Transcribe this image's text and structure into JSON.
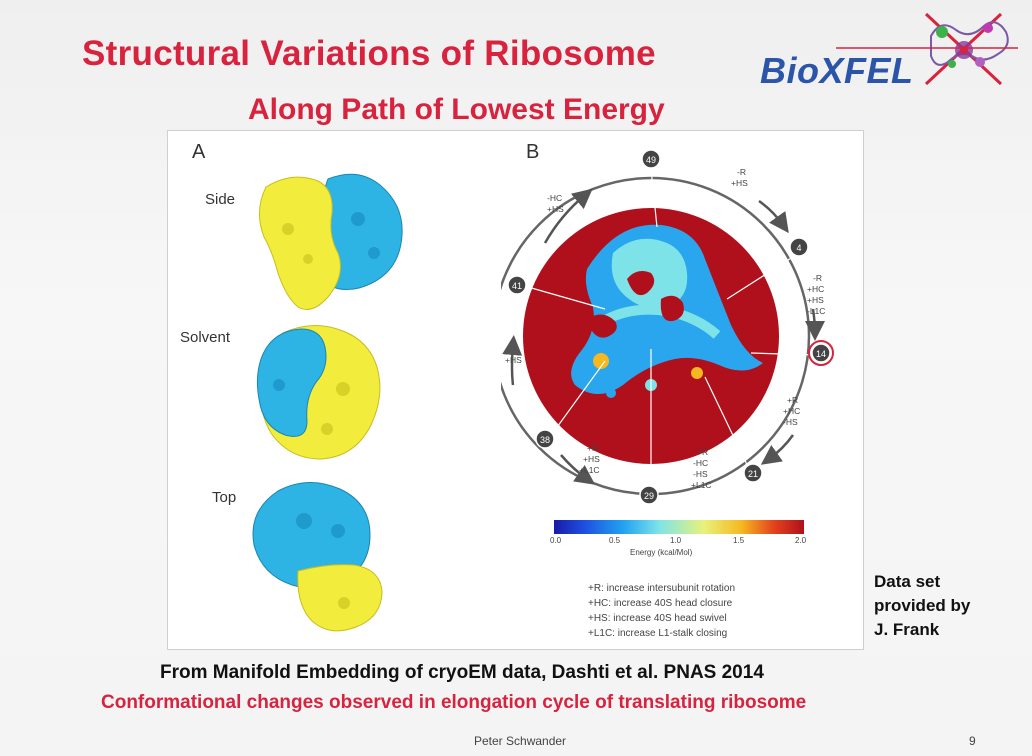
{
  "slide": {
    "title": "Structural Variations of Ribosome",
    "subtitle": "Along Path of Lowest Energy",
    "logo_text": "BioXFEL",
    "figure": {
      "panel_a": {
        "letter": "A",
        "views": [
          "Side",
          "Solvent",
          "Top"
        ]
      },
      "panel_b": {
        "letter": "B",
        "states": [
          {
            "id": "49",
            "highlight": false
          },
          {
            "id": "4",
            "highlight": false
          },
          {
            "id": "14",
            "highlight": true
          },
          {
            "id": "21",
            "highlight": false
          },
          {
            "id": "29",
            "highlight": false
          },
          {
            "id": "38",
            "highlight": false
          },
          {
            "id": "41",
            "highlight": false
          }
        ],
        "transitions": [
          [
            "-R",
            "+HS"
          ],
          [
            "-R",
            "+HC",
            "+HS",
            "-L1C"
          ],
          [
            "+R",
            "+HC",
            "-HS"
          ],
          [
            "+R",
            "-HC",
            "-HS",
            "+L1C"
          ],
          [
            "+R",
            "+HS",
            "+L1C"
          ],
          [
            "+HS"
          ],
          [
            "-HC",
            "+HS"
          ]
        ],
        "colorbar": {
          "ticks": [
            "0.0",
            "0.5",
            "1.0",
            "1.5",
            "2.0"
          ],
          "label": "Energy (kcal/Mol)"
        },
        "legend": [
          "+R: increase intersubunit rotation",
          "+HC: increase 40S head closure",
          "+HS: increase 40S head swivel",
          "+L1C: increase L1-stalk closing"
        ]
      }
    },
    "side_note": [
      "Data set",
      "provided by",
      "J. Frank"
    ],
    "citation": "From Manifold Embedding of cryoEM data, Dashti et al. PNAS 2014",
    "caption": "Conformational changes observed in elongation cycle of translating ribosome",
    "footer": {
      "author": "Peter Schwander",
      "page": "9"
    },
    "colors": {
      "title": "#d8233f",
      "yellow_subunit": "#f2ec3c",
      "blue_subunit": "#2eb4e4",
      "energy_high": "#b0101b",
      "highlight_ring": "#d8233f"
    }
  }
}
